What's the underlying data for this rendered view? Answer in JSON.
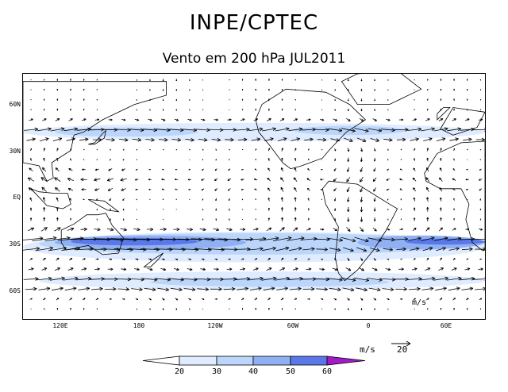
{
  "header": {
    "title": "INPE/CPTEC",
    "subtitle": "Vento em 200 hPa JUL2011"
  },
  "map": {
    "latitude_labels": [
      "60N",
      "30N",
      "EQ",
      "30S",
      "60S"
    ],
    "longitude_labels": [
      "120E",
      "180",
      "120W",
      "60W",
      "0",
      "60E"
    ],
    "inner_vector_label": "m/s",
    "wind_speed_bands_color": {
      "20-30": "#dfecff",
      "30-40": "#bcd6fb",
      "40-50": "#8fb0f2",
      "50-60": "#5b78e8"
    }
  },
  "reference_vector": {
    "unit_label": "m/s",
    "value_label": "20"
  },
  "colorbar": {
    "tick_labels": [
      "20",
      "30",
      "40",
      "50",
      "60"
    ],
    "colors": [
      "#ffffff",
      "#dfecff",
      "#bcd6fb",
      "#8fb0f2",
      "#5b78e8",
      "#3d3fd8",
      "#a21bc6"
    ]
  }
}
